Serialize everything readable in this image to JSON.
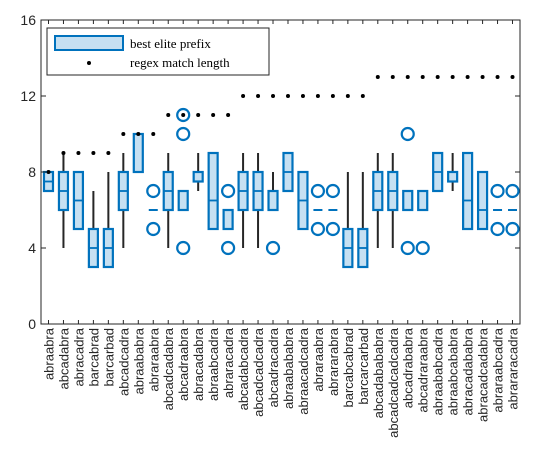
{
  "chart_data": {
    "type": "box",
    "ylim": [
      0,
      16
    ],
    "yticks": [
      0,
      4,
      8,
      12,
      16
    ],
    "legend": {
      "position": "top-left",
      "entries": [
        "best elite prefix",
        "regex match length"
      ]
    },
    "colors": {
      "box_edge": "#0072BD",
      "box_fill": "#c6e0f2",
      "whisker": "#262626",
      "dot": "#000000"
    },
    "categories": [
      "abraabra",
      "abcadabra",
      "abracadra",
      "barcabrad",
      "barcarbad",
      "abcadcadra",
      "abraababra",
      "abraraabra",
      "abcadcadabra",
      "abcadraabra",
      "abracadabra",
      "abraabcadra",
      "abraracadra",
      "abcadabcadra",
      "abcadcadcadra",
      "abcadracadra",
      "abraabababra",
      "abraacadcadra",
      "abraraabra",
      "abrararabra",
      "barcabcabrad",
      "barcarcarbad",
      "abcadabababra",
      "abcadcadcadcadra",
      "abcadrababra",
      "abcadraraabra",
      "abraababcadra",
      "abraabcababra",
      "abracadababra",
      "abracadcadabra",
      "abraraabcadra",
      "abrararacadra"
    ],
    "regex_match_length": [
      8,
      9,
      9,
      9,
      9,
      10,
      10,
      10,
      11,
      11,
      11,
      11,
      11,
      12,
      12,
      12,
      12,
      12,
      12,
      12,
      12,
      12,
      13,
      13,
      13,
      13,
      13,
      13,
      13,
      13,
      13,
      13
    ],
    "boxes": [
      {
        "q1": 7,
        "median": 7.5,
        "q3": 8,
        "wlo": 7,
        "whi": 8,
        "outliers": []
      },
      {
        "q1": 6,
        "median": 7,
        "q3": 8,
        "wlo": 4,
        "whi": 9,
        "outliers": []
      },
      {
        "q1": 5,
        "median": 6.5,
        "q3": 8,
        "wlo": 5,
        "whi": 8,
        "outliers": []
      },
      {
        "q1": 3,
        "median": 4,
        "q3": 5,
        "wlo": 3,
        "whi": 7,
        "outliers": []
      },
      {
        "q1": 3,
        "median": 4,
        "q3": 5,
        "wlo": 3,
        "whi": 8,
        "outliers": []
      },
      {
        "q1": 6,
        "median": 7,
        "q3": 8,
        "wlo": 4,
        "whi": 9,
        "outliers": []
      },
      {
        "q1": 8,
        "median": 8,
        "q3": 10,
        "wlo": 8,
        "whi": 10,
        "outliers": []
      },
      {
        "q1": null,
        "median": 6,
        "q3": null,
        "wlo": null,
        "whi": null,
        "outliers": [
          5,
          7
        ]
      },
      {
        "q1": 6,
        "median": 7,
        "q3": 8,
        "wlo": 4,
        "whi": 9,
        "outliers": []
      },
      {
        "q1": 6,
        "median": 6,
        "q3": 7,
        "wlo": 6,
        "whi": 7,
        "outliers": [
          4,
          10,
          11
        ]
      },
      {
        "q1": 7.5,
        "median": 8,
        "q3": 8,
        "wlo": 7,
        "whi": 9,
        "outliers": []
      },
      {
        "q1": 5,
        "median": 6.5,
        "q3": 9,
        "wlo": 5,
        "whi": 9,
        "outliers": []
      },
      {
        "q1": 5,
        "median": 6,
        "q3": 6,
        "wlo": 5,
        "whi": 6,
        "outliers": [
          4,
          7
        ]
      },
      {
        "q1": 6,
        "median": 7,
        "q3": 8,
        "wlo": 4,
        "whi": 9,
        "outliers": []
      },
      {
        "q1": 6,
        "median": 7,
        "q3": 8,
        "wlo": 4,
        "whi": 9,
        "outliers": []
      },
      {
        "q1": 6,
        "median": 7,
        "q3": 7,
        "wlo": 6,
        "whi": 8,
        "outliers": [
          4
        ]
      },
      {
        "q1": 7,
        "median": 8,
        "q3": 9,
        "wlo": 7,
        "whi": 9,
        "outliers": []
      },
      {
        "q1": 5,
        "median": 6.5,
        "q3": 8,
        "wlo": 5,
        "whi": 8,
        "outliers": []
      },
      {
        "q1": null,
        "median": 6,
        "q3": null,
        "wlo": null,
        "whi": null,
        "outliers": [
          5,
          7
        ]
      },
      {
        "q1": null,
        "median": 6,
        "q3": null,
        "wlo": null,
        "whi": null,
        "outliers": [
          5,
          7
        ]
      },
      {
        "q1": 3,
        "median": 4,
        "q3": 5,
        "wlo": 3,
        "whi": 8,
        "outliers": []
      },
      {
        "q1": 3,
        "median": 4,
        "q3": 5,
        "wlo": 3,
        "whi": 8,
        "outliers": []
      },
      {
        "q1": 6,
        "median": 7,
        "q3": 8,
        "wlo": 4,
        "whi": 9,
        "outliers": []
      },
      {
        "q1": 6,
        "median": 7,
        "q3": 8,
        "wlo": 4,
        "whi": 9,
        "outliers": []
      },
      {
        "q1": 6,
        "median": 6,
        "q3": 7,
        "wlo": 6,
        "whi": 7,
        "outliers": [
          4,
          10
        ]
      },
      {
        "q1": 6,
        "median": 6,
        "q3": 7,
        "wlo": 6,
        "whi": 7,
        "outliers": [
          4
        ]
      },
      {
        "q1": 7,
        "median": 8,
        "q3": 9,
        "wlo": 7,
        "whi": 9,
        "outliers": []
      },
      {
        "q1": 7.5,
        "median": 8,
        "q3": 8,
        "wlo": 7,
        "whi": 9,
        "outliers": []
      },
      {
        "q1": 5,
        "median": 6.5,
        "q3": 9,
        "wlo": 5,
        "whi": 9,
        "outliers": []
      },
      {
        "q1": 5,
        "median": 6,
        "q3": 8,
        "wlo": 5,
        "whi": 8,
        "outliers": []
      },
      {
        "q1": null,
        "median": 6,
        "q3": null,
        "wlo": null,
        "whi": null,
        "outliers": [
          5,
          7
        ]
      },
      {
        "q1": null,
        "median": 6,
        "q3": null,
        "wlo": null,
        "whi": null,
        "outliers": [
          5,
          7
        ]
      }
    ]
  }
}
